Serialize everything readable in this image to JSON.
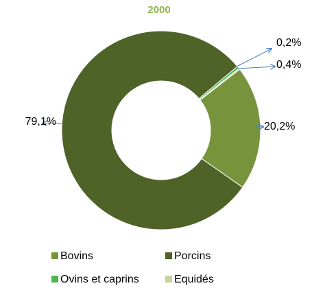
{
  "chart_data": {
    "type": "donut",
    "title": "2000",
    "categories": [
      "Bovins",
      "Porcins",
      "Ovins et caprins",
      "Equidés"
    ],
    "values": [
      20.2,
      79.1,
      0.4,
      0.2
    ],
    "value_labels": [
      "20,2%",
      "79,1%",
      "0,4%",
      "0,2%"
    ],
    "colors": [
      "#77933c",
      "#4f6228",
      "#4cb849",
      "#c3d69b"
    ],
    "legend": "bottom"
  }
}
